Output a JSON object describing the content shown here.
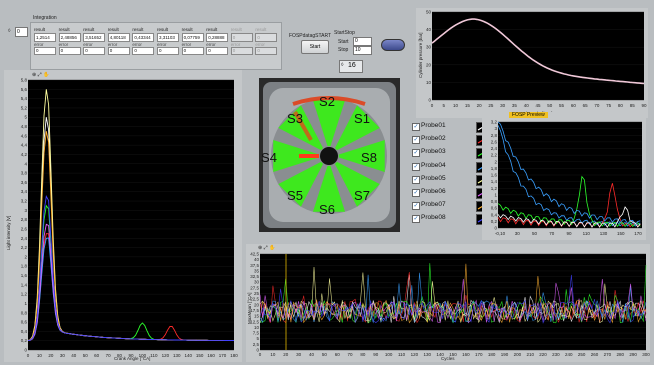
{
  "integration": {
    "title": "Integration",
    "index_value": "0",
    "result_label": "result",
    "error_label": "error",
    "results": [
      "1,2514",
      "2,48856",
      "3,51652",
      "4,80118",
      "0,43344",
      "3,31103",
      "0,07759",
      "0,28888",
      "0",
      "0"
    ],
    "errors": [
      "0",
      "0",
      "0",
      "0",
      "0",
      "0",
      "0",
      "0",
      "0",
      "0"
    ]
  },
  "fosp": {
    "label": "FOSPdatagSTART",
    "start_button": "Start",
    "startstop_label": "StartStop",
    "start_label": "Start",
    "start_value": "0",
    "stop_label": "Stop",
    "stop_value": "10",
    "counter_value": "16"
  },
  "toggle": {
    "state": "off"
  },
  "top_right_chart": {
    "ylabel": "Cylinder pressure [bar]",
    "xlabel": "Crank Angle [°CA]",
    "yticks": [
      "0",
      "10",
      "20",
      "30",
      "40",
      "50"
    ],
    "xticks": [
      "0",
      "5",
      "10",
      "15",
      "20",
      "25",
      "30",
      "35",
      "40",
      "45",
      "50",
      "55",
      "60",
      "65",
      "70",
      "75",
      "80",
      "85",
      "90"
    ]
  },
  "left_chart": {
    "ylabel": "Light intensity [V]",
    "xlabel": "Crank Angle [°CA]",
    "yticks": [
      "0",
      "0,2",
      "0,4",
      "0,6",
      "0,8",
      "1",
      "1,2",
      "1,4",
      "1,6",
      "1,8",
      "2",
      "2,2",
      "2,4",
      "2,6",
      "2,8",
      "3",
      "3,2",
      "3,4",
      "3,6",
      "3,8",
      "4",
      "4,2",
      "4,4",
      "4,6",
      "4,8",
      "5",
      "5,2",
      "5,4",
      "5,6",
      "5,8"
    ],
    "xticks": [
      "0",
      "10",
      "20",
      "30",
      "40",
      "50",
      "60",
      "70",
      "80",
      "90",
      "100",
      "110",
      "120",
      "130",
      "140",
      "150",
      "160",
      "170",
      "180"
    ]
  },
  "mid_right_chart": {
    "title": "FOSP Preview",
    "yticks": [
      "0",
      "0,2",
      "0,4",
      "0,6",
      "0,8",
      "1",
      "1,2",
      "1,4",
      "1,6",
      "1,8",
      "2",
      "2,2",
      "2,4",
      "2,6",
      "2,8",
      "3",
      "3,2"
    ],
    "xticks": [
      "-0,10",
      "30",
      "50",
      "70",
      "90",
      "110",
      "130",
      "150",
      "170"
    ]
  },
  "bottom_chart": {
    "ylabel": "MaxMean [°CA]",
    "xlabel": "Cycles",
    "yticks": [
      "0",
      "2,5",
      "5",
      "7,5",
      "10",
      "12,5",
      "15",
      "17,5",
      "20",
      "22,5",
      "25",
      "27,5",
      "30",
      "32,5",
      "35",
      "37,5",
      "40",
      "42,5"
    ],
    "xticks": [
      "0",
      "10",
      "20",
      "30",
      "40",
      "50",
      "60",
      "70",
      "80",
      "90",
      "100",
      "110",
      "120",
      "130",
      "140",
      "150",
      "160",
      "170",
      "180",
      "190",
      "200",
      "210",
      "220",
      "230",
      "240",
      "250",
      "260",
      "270",
      "280",
      "290",
      "300"
    ]
  },
  "engine_image": {
    "sensor_labels": [
      "S2",
      "S1",
      "S3",
      "S8",
      "S4",
      "S7",
      "S5",
      "S6"
    ]
  },
  "probes": [
    {
      "label": "Probe01",
      "color": "#ffffff"
    },
    {
      "label": "Probe02",
      "color": "#ff2a2a"
    },
    {
      "label": "Probe03",
      "color": "#2cff2c"
    },
    {
      "label": "Probe04",
      "color": "#3aa0ff"
    },
    {
      "label": "Probe05",
      "color": "#ffffa0"
    },
    {
      "label": "Probe06",
      "color": "#e060ff"
    },
    {
      "label": "Probe07",
      "color": "#ffb030"
    },
    {
      "label": "Probe08",
      "color": "#4040ff"
    }
  ],
  "graph_tool_icons": "zoom / pan"
}
